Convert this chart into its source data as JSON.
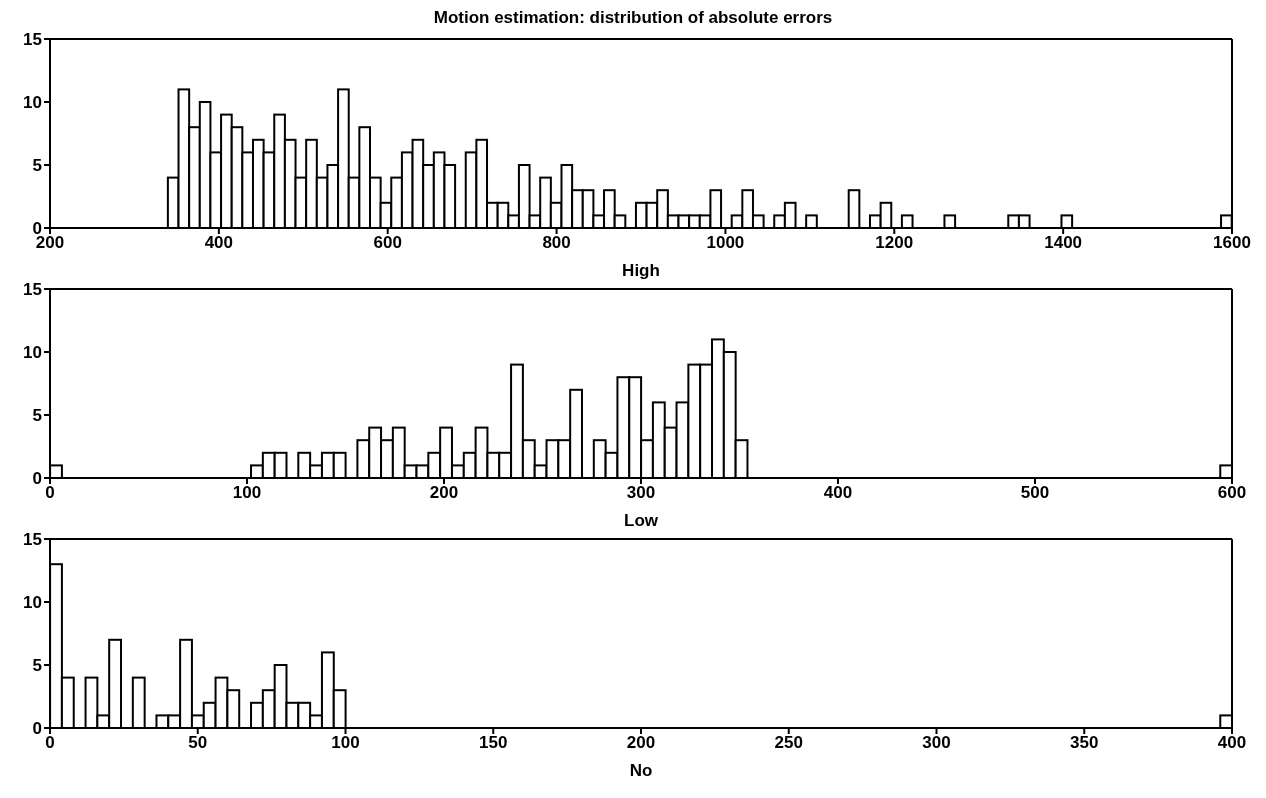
{
  "chart_data": [
    {
      "type": "histogram",
      "title": "Motion estimation: distribution of absolute errors",
      "xlabel": "High",
      "color": "#ffffff",
      "bins": [
        340,
        352.6,
        365.2,
        377.8,
        390.4,
        403,
        415.6,
        428.2,
        440.8,
        453.4,
        466,
        478.6,
        491.2,
        503.8,
        516.4,
        529,
        541.6,
        554.2,
        566.8,
        579.4,
        592,
        604.6,
        617.2,
        629.8,
        642.4,
        655,
        667.6,
        680.2,
        692.8,
        705.4,
        718,
        730.6,
        743.2,
        755.8,
        768.4,
        781,
        793.6,
        806.2,
        818.8,
        831.4,
        844,
        856.6,
        869.2,
        881.8,
        894.4,
        907,
        919.6,
        932.2,
        944.8,
        957.4,
        970,
        982.6,
        995.2,
        1007.8,
        1020.4,
        1033,
        1045.6,
        1058.2,
        1070.8,
        1083.4,
        1096,
        1108.6,
        1121.2,
        1133.8,
        1146.4,
        1159,
        1171.6,
        1184.2,
        1196.8,
        1209.4,
        1222,
        1234.6,
        1247.2,
        1259.8,
        1272.4,
        1285,
        1297.6,
        1310.2,
        1322.8,
        1335.4,
        1348,
        1360.6,
        1373.2,
        1385.8,
        1398.4,
        1411,
        1423.6,
        1436.2,
        1448.8,
        1461.4,
        1474,
        1486.6,
        1499.2,
        1511.8,
        1524.4,
        1537,
        1549.6,
        1562.2,
        1574.8,
        1587.4,
        1600
      ],
      "values": [
        4,
        11,
        8,
        10,
        6,
        9,
        8,
        6,
        7,
        6,
        9,
        7,
        4,
        7,
        4,
        5,
        11,
        4,
        8,
        4,
        2,
        4,
        6,
        7,
        5,
        6,
        5,
        0,
        6,
        7,
        2,
        2,
        1,
        5,
        1,
        4,
        2,
        5,
        3,
        3,
        1,
        3,
        1,
        0,
        2,
        2,
        3,
        1,
        1,
        1,
        1,
        3,
        0,
        1,
        3,
        1,
        0,
        1,
        2,
        0,
        1,
        0,
        0,
        0,
        3,
        0,
        1,
        2,
        0,
        1,
        0,
        0,
        0,
        1,
        0,
        0,
        0,
        0,
        0,
        1,
        1,
        0,
        0,
        0,
        1,
        0,
        0,
        0,
        0,
        0,
        0,
        0,
        0,
        0,
        0,
        0,
        0,
        0,
        0,
        1
      ],
      "xlim": [
        200,
        1600
      ],
      "xticks": [
        200,
        400,
        600,
        800,
        1000,
        1200,
        1400,
        1600
      ],
      "ylim": [
        0,
        15
      ],
      "yticks": [
        0,
        5,
        10,
        15
      ]
    },
    {
      "type": "histogram",
      "xlabel": "Low",
      "color": "#ffffff",
      "bins": [
        0,
        6,
        12,
        18,
        24,
        30,
        36,
        42,
        48,
        54,
        60,
        66,
        72,
        78,
        84,
        90,
        96,
        102,
        108,
        114,
        120,
        126,
        132,
        138,
        144,
        150,
        156,
        162,
        168,
        174,
        180,
        186,
        192,
        198,
        204,
        210,
        216,
        222,
        228,
        234,
        240,
        246,
        252,
        258,
        264,
        270,
        276,
        282,
        288,
        294,
        300,
        306,
        312,
        318,
        324,
        330,
        336,
        342,
        348,
        354,
        360,
        366,
        372,
        378,
        384,
        390,
        396,
        402,
        408,
        414,
        420,
        426,
        432,
        438,
        444,
        450,
        456,
        462,
        468,
        474,
        480,
        486,
        492,
        498,
        504,
        510,
        516,
        522,
        528,
        534,
        540,
        546,
        552,
        558,
        564,
        570,
        576,
        582,
        588,
        594,
        600
      ],
      "values": [
        1,
        0,
        0,
        0,
        0,
        0,
        0,
        0,
        0,
        0,
        0,
        0,
        0,
        0,
        0,
        0,
        0,
        1,
        2,
        2,
        0,
        2,
        1,
        2,
        2,
        0,
        3,
        4,
        3,
        4,
        1,
        1,
        2,
        4,
        1,
        2,
        4,
        2,
        2,
        9,
        3,
        1,
        3,
        3,
        7,
        0,
        3,
        2,
        8,
        8,
        3,
        6,
        4,
        6,
        9,
        9,
        11,
        10,
        3,
        0,
        0,
        0,
        0,
        0,
        0,
        0,
        0,
        0,
        0,
        0,
        0,
        0,
        0,
        0,
        0,
        0,
        0,
        0,
        0,
        0,
        0,
        0,
        0,
        0,
        0,
        0,
        0,
        0,
        0,
        0,
        0,
        0,
        0,
        0,
        0,
        0,
        0,
        0,
        0,
        1
      ],
      "xlim": [
        0,
        600
      ],
      "xticks": [
        0,
        100,
        200,
        300,
        400,
        500,
        600
      ],
      "ylim": [
        0,
        15
      ],
      "yticks": [
        0,
        5,
        10,
        15
      ]
    },
    {
      "type": "histogram",
      "xlabel": "No",
      "color": "#ffffff",
      "bins": [
        0,
        4,
        8,
        12,
        16,
        20,
        24,
        28,
        32,
        36,
        40,
        44,
        48,
        52,
        56,
        60,
        64,
        68,
        72,
        76,
        80,
        84,
        88,
        92,
        96,
        100,
        104,
        108,
        112,
        116,
        120,
        124,
        128,
        132,
        136,
        140,
        144,
        148,
        152,
        156,
        160,
        164,
        168,
        172,
        176,
        180,
        184,
        188,
        192,
        196,
        200,
        204,
        208,
        212,
        216,
        220,
        224,
        228,
        232,
        236,
        240,
        244,
        248,
        252,
        256,
        260,
        264,
        268,
        272,
        276,
        280,
        284,
        288,
        292,
        296,
        300,
        304,
        308,
        312,
        316,
        320,
        324,
        328,
        332,
        336,
        340,
        344,
        348,
        352,
        356,
        360,
        364,
        368,
        372,
        376,
        380,
        384,
        388,
        392,
        396,
        400
      ],
      "values": [
        13,
        4,
        0,
        4,
        1,
        7,
        0,
        4,
        0,
        1,
        1,
        7,
        1,
        2,
        4,
        3,
        0,
        2,
        3,
        5,
        2,
        2,
        1,
        6,
        3,
        0,
        0,
        0,
        0,
        0,
        0,
        0,
        0,
        0,
        0,
        0,
        0,
        0,
        0,
        0,
        0,
        0,
        0,
        0,
        0,
        0,
        0,
        0,
        0,
        0,
        0,
        0,
        0,
        0,
        0,
        0,
        0,
        0,
        0,
        0,
        0,
        0,
        0,
        0,
        0,
        0,
        0,
        0,
        0,
        0,
        0,
        0,
        0,
        0,
        0,
        0,
        0,
        0,
        0,
        0,
        0,
        0,
        0,
        0,
        0,
        0,
        0,
        0,
        0,
        0,
        0,
        0,
        0,
        0,
        0,
        0,
        0,
        0,
        0,
        1
      ],
      "xlim": [
        0,
        400
      ],
      "xticks": [
        0,
        50,
        100,
        150,
        200,
        250,
        300,
        350,
        400
      ],
      "ylim": [
        0,
        15
      ],
      "yticks": [
        0,
        5,
        10,
        15
      ]
    }
  ]
}
